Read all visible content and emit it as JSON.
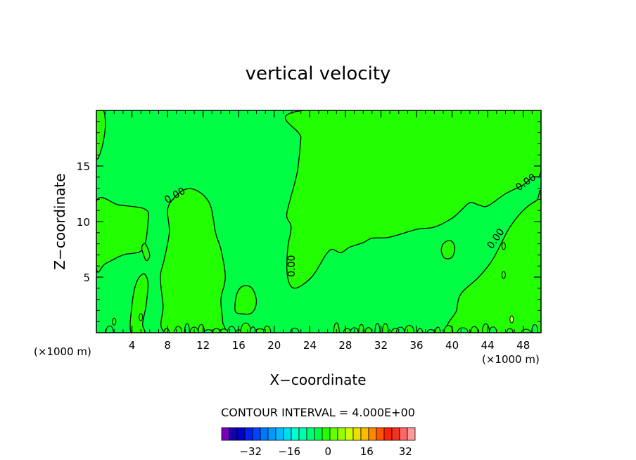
{
  "chart_data": {
    "type": "contour",
    "title": "vertical velocity",
    "xlabel": "X−coordinate",
    "ylabel": "Z−coordinate",
    "x_unit_left": "(×1000 m)",
    "x_unit_right": "(×1000 m)",
    "xlim": [
      0,
      50
    ],
    "ylim": [
      0,
      20
    ],
    "x_ticks": [
      4,
      8,
      12,
      16,
      20,
      24,
      28,
      32,
      36,
      40,
      44,
      48
    ],
    "y_ticks": [
      5,
      10,
      15
    ],
    "contour_interval_text": "CONTOUR INTERVAL = 4.000E+00",
    "contour_labels": [
      {
        "text": "0.00",
        "x": 9.0,
        "y": 12.1
      },
      {
        "text": "0.00",
        "x": 22.3,
        "y": 6.0
      },
      {
        "text": "0.00",
        "x": 45.2,
        "y": 8.3
      },
      {
        "text": "0.00",
        "x": 48.5,
        "y": 13.3
      }
    ],
    "regions": [
      {
        "level": "0 to 4",
        "color": "#22ff00",
        "outline": [
          [
            0,
            20
          ],
          [
            0,
            15.8
          ],
          [
            0.6,
            16.6
          ],
          [
            1.0,
            18.5
          ],
          [
            0.8,
            20
          ]
        ]
      },
      {
        "level": "0 to 4",
        "color": "#22ff00",
        "outline": [
          [
            23.3,
            20
          ],
          [
            23.0,
            17.5
          ],
          [
            22.6,
            14.5
          ],
          [
            21.8,
            12.0
          ],
          [
            21.4,
            10.5
          ],
          [
            21.9,
            9.5
          ],
          [
            21.5,
            7.5
          ],
          [
            21.5,
            5.0
          ],
          [
            22.3,
            4.0
          ],
          [
            24.2,
            5.0
          ],
          [
            25.8,
            7.0
          ],
          [
            26.5,
            7.5
          ],
          [
            27.5,
            7.2
          ],
          [
            28.5,
            7.7
          ],
          [
            30.0,
            8.1
          ],
          [
            31.0,
            8.5
          ],
          [
            33.0,
            8.6
          ],
          [
            36.0,
            9.3
          ],
          [
            38.0,
            9.5
          ],
          [
            40.0,
            10.3
          ],
          [
            41.0,
            11.0
          ],
          [
            42.0,
            11.7
          ],
          [
            43.0,
            11.5
          ],
          [
            44.0,
            11.4
          ],
          [
            46.0,
            12.5
          ],
          [
            48.0,
            13.3
          ],
          [
            49.0,
            14.0
          ],
          [
            50,
            14.6
          ],
          [
            50,
            20
          ]
        ]
      },
      {
        "level": "0 to 4",
        "color": "#22ff00",
        "outline": [
          [
            0,
            11.8
          ],
          [
            2.5,
            11.5
          ],
          [
            5.5,
            11.1
          ],
          [
            5.8,
            10.0
          ],
          [
            5.2,
            7.5
          ],
          [
            3.0,
            7.0
          ],
          [
            1.0,
            6.2
          ],
          [
            0,
            5.8
          ]
        ]
      },
      {
        "level": "0 to 4",
        "color": "#22ff00",
        "outline": [
          [
            7.8,
            0
          ],
          [
            7.5,
            2.5
          ],
          [
            7.2,
            5.0
          ],
          [
            7.6,
            6.5
          ],
          [
            8.2,
            9.0
          ],
          [
            8.0,
            11.0
          ],
          [
            8.6,
            12.0
          ],
          [
            10.0,
            12.9
          ],
          [
            11.5,
            12.7
          ],
          [
            12.8,
            11.5
          ],
          [
            13.4,
            9.0
          ],
          [
            14.0,
            7.5
          ],
          [
            14.5,
            5.0
          ],
          [
            14.0,
            3.0
          ],
          [
            14.2,
            1.0
          ],
          [
            14.0,
            0
          ]
        ]
      },
      {
        "level": "0 to 4",
        "color": "#22ff00",
        "outline": [
          [
            15.6,
            2.0
          ],
          [
            15.8,
            3.5
          ],
          [
            16.5,
            4.2
          ],
          [
            17.5,
            4.0
          ],
          [
            18.0,
            2.8
          ],
          [
            17.5,
            1.8
          ],
          [
            16.3,
            1.7
          ]
        ]
      },
      {
        "level": "0 to 4",
        "color": "#22ff00",
        "outline": [
          [
            3.9,
            0
          ],
          [
            4.0,
            2.5
          ],
          [
            4.5,
            4.5
          ],
          [
            5.3,
            5.3
          ],
          [
            5.8,
            4.5
          ],
          [
            5.6,
            2.5
          ],
          [
            5.2,
            0.8
          ],
          [
            5.4,
            0
          ]
        ]
      },
      {
        "level": "0 to 4",
        "color": "#22ff00",
        "outline": [
          [
            40.0,
            0
          ],
          [
            40.5,
            2.0
          ],
          [
            41.0,
            3.5
          ],
          [
            43.0,
            5.0
          ],
          [
            44.5,
            6.5
          ],
          [
            45.5,
            8.0
          ],
          [
            46.5,
            9.5
          ],
          [
            48.0,
            11.0
          ],
          [
            49.5,
            11.9
          ],
          [
            50,
            11.9
          ],
          [
            50,
            0
          ]
        ]
      },
      {
        "level": "0 to 4",
        "color": "#22ff00",
        "outline": [
          [
            38.8,
            7.3
          ],
          [
            39.0,
            8.0
          ],
          [
            39.8,
            8.3
          ],
          [
            40.3,
            7.7
          ],
          [
            40.0,
            6.8
          ],
          [
            39.2,
            6.7
          ]
        ]
      },
      {
        "level": "0 to 4",
        "color": "#22ff00",
        "outline": [
          [
            5.1,
            7.6
          ],
          [
            5.5,
            8.0
          ],
          [
            6.0,
            7.0
          ],
          [
            5.6,
            6.5
          ]
        ]
      }
    ],
    "background_color": "#00ff44",
    "colorbar": {
      "colors": [
        "#7700bb",
        "#1100aa",
        "#0000cc",
        "#0022ee",
        "#0044ff",
        "#0077ff",
        "#0099ff",
        "#00bbff",
        "#00ddee",
        "#00ffcc",
        "#00ffaa",
        "#00ff77",
        "#00ff44",
        "#22ff00",
        "#66ff00",
        "#99ff00",
        "#ccff00",
        "#eedd00",
        "#ffbb00",
        "#ff8800",
        "#ff5500",
        "#ff2200",
        "#ee3322",
        "#ff6666",
        "#ff9999"
      ],
      "tick_labels": [
        {
          "text": "−32",
          "at": 2
        },
        {
          "text": "−16",
          "at": 6
        },
        {
          "text": "0",
          "at": 10
        },
        {
          "text": "16",
          "at": 14
        },
        {
          "text": "32",
          "at": 18
        }
      ]
    }
  }
}
